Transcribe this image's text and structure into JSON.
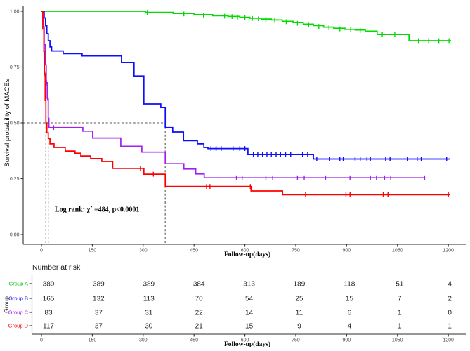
{
  "figure": {
    "y_axis_title": "Survival probability of MACEs",
    "x_axis_title": "Follow-up(days)",
    "annotation": {
      "prefix": "Log rank: χ",
      "sup": "2",
      "suffix": " =484, p<0.0001"
    }
  },
  "chart_data": {
    "type": "line",
    "subtype": "kaplan-meier-step",
    "title": "",
    "xlabel": "Follow-up(days)",
    "ylabel": "Survival probability of MACEs",
    "xlim": [
      0,
      1260
    ],
    "ylim": [
      0.0,
      1.0
    ],
    "x_ticks": [
      0,
      150,
      300,
      450,
      600,
      750,
      900,
      1050,
      1200
    ],
    "y_ticks": [
      "0.00",
      "0.25",
      "0.50",
      "0.75",
      "1.00"
    ],
    "grid": false,
    "legend_position": "none",
    "annotation": "Log rank: χ² =484, p<0.0001",
    "reference_lines": {
      "h_value": 0.5,
      "v_days": [
        13,
        20,
        365
      ]
    },
    "series": [
      {
        "id": "group-a",
        "name": "Group A",
        "color": "#00DC00",
        "steps": [
          [
            0,
            1.0
          ],
          [
            307,
            0.995
          ],
          [
            388,
            0.99
          ],
          [
            450,
            0.985
          ],
          [
            505,
            0.98
          ],
          [
            550,
            0.977
          ],
          [
            585,
            0.973
          ],
          [
            615,
            0.969
          ],
          [
            648,
            0.965
          ],
          [
            678,
            0.961
          ],
          [
            710,
            0.955
          ],
          [
            742,
            0.949
          ],
          [
            772,
            0.942
          ],
          [
            802,
            0.936
          ],
          [
            832,
            0.929
          ],
          [
            862,
            0.924
          ],
          [
            895,
            0.919
          ],
          [
            925,
            0.916
          ],
          [
            955,
            0.911
          ],
          [
            990,
            0.896
          ],
          [
            1084,
            0.868
          ],
          [
            1208,
            0.868
          ]
        ],
        "censors": [
          [
            312,
            0.995
          ],
          [
            420,
            0.988
          ],
          [
            478,
            0.983
          ],
          [
            540,
            0.978
          ],
          [
            562,
            0.976
          ],
          [
            578,
            0.974
          ],
          [
            600,
            0.971
          ],
          [
            622,
            0.968
          ],
          [
            640,
            0.966
          ],
          [
            662,
            0.963
          ],
          [
            688,
            0.959
          ],
          [
            722,
            0.953
          ],
          [
            755,
            0.946
          ],
          [
            788,
            0.938
          ],
          [
            818,
            0.932
          ],
          [
            848,
            0.926
          ],
          [
            880,
            0.921
          ],
          [
            912,
            0.917
          ],
          [
            940,
            0.914
          ],
          [
            1005,
            0.896
          ],
          [
            1042,
            0.896
          ],
          [
            1112,
            0.868
          ],
          [
            1142,
            0.868
          ],
          [
            1172,
            0.868
          ],
          [
            1202,
            0.868
          ]
        ]
      },
      {
        "id": "group-b",
        "name": "Group B",
        "color": "#0D0DFF",
        "steps": [
          [
            0,
            1.0
          ],
          [
            8,
            0.97
          ],
          [
            12,
            0.935
          ],
          [
            16,
            0.9
          ],
          [
            20,
            0.868
          ],
          [
            25,
            0.84
          ],
          [
            30,
            0.822
          ],
          [
            64,
            0.81
          ],
          [
            120,
            0.8
          ],
          [
            236,
            0.77
          ],
          [
            273,
            0.71
          ],
          [
            302,
            0.585
          ],
          [
            352,
            0.569
          ],
          [
            365,
            0.479
          ],
          [
            387,
            0.459
          ],
          [
            419,
            0.42
          ],
          [
            460,
            0.406
          ],
          [
            479,
            0.39
          ],
          [
            491,
            0.385
          ],
          [
            609,
            0.358
          ],
          [
            802,
            0.338
          ],
          [
            1204,
            0.338
          ]
        ],
        "censors": [
          [
            500,
            0.385
          ],
          [
            515,
            0.385
          ],
          [
            530,
            0.385
          ],
          [
            565,
            0.385
          ],
          [
            585,
            0.385
          ],
          [
            600,
            0.385
          ],
          [
            625,
            0.358
          ],
          [
            638,
            0.358
          ],
          [
            652,
            0.358
          ],
          [
            665,
            0.358
          ],
          [
            678,
            0.358
          ],
          [
            692,
            0.358
          ],
          [
            705,
            0.358
          ],
          [
            720,
            0.358
          ],
          [
            735,
            0.358
          ],
          [
            770,
            0.358
          ],
          [
            785,
            0.358
          ],
          [
            812,
            0.338
          ],
          [
            850,
            0.338
          ],
          [
            880,
            0.338
          ],
          [
            890,
            0.338
          ],
          [
            925,
            0.338
          ],
          [
            940,
            0.338
          ],
          [
            960,
            0.338
          ],
          [
            970,
            0.338
          ],
          [
            1015,
            0.338
          ],
          [
            1028,
            0.338
          ],
          [
            1080,
            0.338
          ],
          [
            1108,
            0.338
          ],
          [
            1120,
            0.338
          ],
          [
            1195,
            0.338
          ]
        ]
      },
      {
        "id": "group-c",
        "name": "Group C",
        "color": "#A020F0",
        "steps": [
          [
            0,
            1.0
          ],
          [
            5,
            0.93
          ],
          [
            8,
            0.85
          ],
          [
            11,
            0.76
          ],
          [
            14,
            0.68
          ],
          [
            17,
            0.61
          ],
          [
            20,
            0.52
          ],
          [
            22,
            0.479
          ],
          [
            122,
            0.463
          ],
          [
            151,
            0.432
          ],
          [
            234,
            0.395
          ],
          [
            296,
            0.369
          ],
          [
            365,
            0.317
          ],
          [
            420,
            0.293
          ],
          [
            455,
            0.271
          ],
          [
            480,
            0.254
          ],
          [
            1132,
            0.254
          ]
        ],
        "censors": [
          [
            15,
            0.68
          ],
          [
            18,
            0.61
          ],
          [
            36,
            0.479
          ],
          [
            575,
            0.254
          ],
          [
            592,
            0.254
          ],
          [
            662,
            0.254
          ],
          [
            682,
            0.254
          ],
          [
            755,
            0.254
          ],
          [
            775,
            0.254
          ],
          [
            838,
            0.254
          ],
          [
            910,
            0.254
          ],
          [
            970,
            0.254
          ],
          [
            988,
            0.254
          ],
          [
            1012,
            0.254
          ],
          [
            1030,
            0.254
          ],
          [
            1130,
            0.254
          ]
        ]
      },
      {
        "id": "group-d",
        "name": "Group D",
        "color": "#FF0000",
        "steps": [
          [
            0,
            1.0
          ],
          [
            4,
            0.92
          ],
          [
            7,
            0.82
          ],
          [
            9,
            0.72
          ],
          [
            11,
            0.6
          ],
          [
            13,
            0.5
          ],
          [
            16,
            0.455
          ],
          [
            20,
            0.43
          ],
          [
            25,
            0.406
          ],
          [
            37,
            0.39
          ],
          [
            70,
            0.374
          ],
          [
            99,
            0.364
          ],
          [
            116,
            0.352
          ],
          [
            145,
            0.34
          ],
          [
            178,
            0.327
          ],
          [
            210,
            0.296
          ],
          [
            302,
            0.27
          ],
          [
            365,
            0.215
          ],
          [
            618,
            0.195
          ],
          [
            711,
            0.178
          ],
          [
            1204,
            0.178
          ]
        ],
        "censors": [
          [
            10,
            0.72
          ],
          [
            292,
            0.296
          ],
          [
            330,
            0.27
          ],
          [
            487,
            0.215
          ],
          [
            497,
            0.215
          ],
          [
            616,
            0.215
          ],
          [
            779,
            0.178
          ],
          [
            898,
            0.178
          ],
          [
            910,
            0.178
          ],
          [
            1008,
            0.178
          ],
          [
            1022,
            0.178
          ],
          [
            1200,
            0.178
          ]
        ]
      }
    ]
  },
  "risk_table": {
    "title": "Number at risk",
    "y_label": "Group",
    "xlabel": "Follow-up(days)",
    "columns": [
      0,
      150,
      300,
      450,
      600,
      750,
      900,
      1050,
      1200
    ],
    "rows": [
      {
        "id": "group-a",
        "label": "Group A",
        "color": "#00C400",
        "values": [
          389,
          389,
          389,
          384,
          313,
          189,
          118,
          51,
          4
        ]
      },
      {
        "id": "group-b",
        "label": "Group B",
        "color": "#0D0DFF",
        "values": [
          165,
          132,
          113,
          70,
          54,
          25,
          15,
          7,
          2
        ]
      },
      {
        "id": "group-c",
        "label": "Group C",
        "color": "#A020F0",
        "values": [
          83,
          37,
          31,
          22,
          14,
          11,
          6,
          1,
          0
        ]
      },
      {
        "id": "group-d",
        "label": "Group D",
        "color": "#FF0000",
        "values": [
          117,
          37,
          30,
          21,
          15,
          9,
          4,
          1,
          1
        ]
      }
    ]
  },
  "style": {
    "axis_color": "#2e2e2e",
    "dash_color": "#575757",
    "tick_label_color": "#4d4d4d",
    "value_color": "#1a1a1a"
  }
}
